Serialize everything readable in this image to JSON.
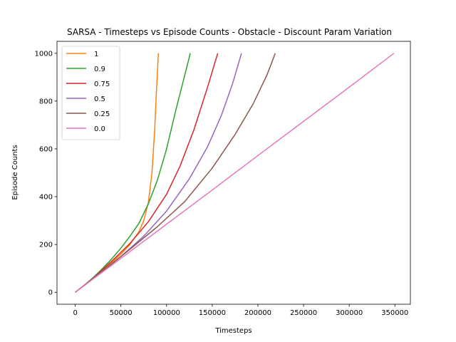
{
  "chart_data": {
    "type": "line",
    "title": "SARSA - Timesteps vs Episode Counts - Obstacle - Discount Param Variation",
    "xlabel": "Timesteps",
    "ylabel": "Episode Counts",
    "xlim": [
      -20000,
      367000
    ],
    "ylim": [
      -50,
      1050
    ],
    "xticks": [
      0,
      50000,
      100000,
      150000,
      200000,
      250000,
      300000,
      350000
    ],
    "yticks": [
      0,
      200,
      400,
      600,
      800,
      1000
    ],
    "grid": false,
    "legend_position": "upper-left",
    "series": [
      {
        "name": "1",
        "color": "#ff7f0e",
        "x": [
          0,
          10000,
          20000,
          30000,
          40000,
          50000,
          60000,
          70000,
          75000,
          80000,
          84000,
          87000,
          89000,
          91000
        ],
        "y": [
          0,
          28,
          60,
          92,
          124,
          160,
          200,
          255,
          300,
          375,
          500,
          680,
          850,
          1000
        ]
      },
      {
        "name": "0.9",
        "color": "#2ca02c",
        "x": [
          0,
          10000,
          20000,
          30000,
          40000,
          50000,
          60000,
          70000,
          80000,
          90000,
          100000,
          110000,
          118000,
          126000
        ],
        "y": [
          0,
          30,
          63,
          100,
          140,
          185,
          235,
          290,
          370,
          470,
          600,
          760,
          880,
          1000
        ]
      },
      {
        "name": "0.75",
        "color": "#d62728",
        "x": [
          0,
          20000,
          40000,
          60000,
          80000,
          100000,
          115000,
          130000,
          145000,
          156000
        ],
        "y": [
          0,
          60,
          130,
          205,
          295,
          410,
          530,
          680,
          860,
          1000
        ]
      },
      {
        "name": "0.5",
        "color": "#9467bd",
        "x": [
          0,
          25000,
          50000,
          75000,
          100000,
          125000,
          145000,
          160000,
          172000,
          182000
        ],
        "y": [
          0,
          74,
          150,
          235,
          340,
          475,
          610,
          740,
          870,
          1000
        ]
      },
      {
        "name": "0.25",
        "color": "#8c564b",
        "x": [
          0,
          30000,
          60000,
          90000,
          120000,
          150000,
          175000,
          195000,
          210000,
          219000
        ],
        "y": [
          0,
          88,
          180,
          275,
          380,
          520,
          660,
          790,
          910,
          1000
        ]
      },
      {
        "name": "0.0",
        "color": "#e377c2",
        "x": [
          0,
          50000,
          100000,
          150000,
          200000,
          250000,
          300000,
          349000
        ],
        "y": [
          0,
          142,
          285,
          428,
          572,
          715,
          858,
          1000
        ]
      }
    ]
  }
}
